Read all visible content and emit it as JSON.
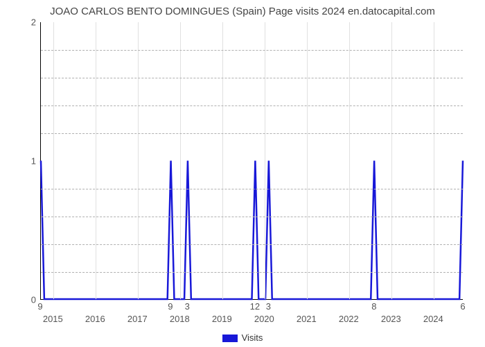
{
  "title": "JOAO CARLOS BENTO DOMINGUES (Spain) Page visits 2024 en.datocapital.com",
  "chart": {
    "type": "line",
    "background_color": "#ffffff",
    "grid_color": "#e0e0e0",
    "dashed_grid_color": "#b0b0b0",
    "axis_color": "#000000",
    "title_fontsize": 15,
    "title_color": "#444444",
    "tick_fontsize": 13,
    "tick_color": "#555555",
    "line_color": "#1818d8",
    "line_width": 2.5,
    "ylim": [
      0,
      2
    ],
    "yticks": [
      0,
      1,
      2
    ],
    "minor_y_count_between": 4,
    "xlim": [
      2014.7,
      2024.7
    ],
    "xticks": [
      2015,
      2016,
      2017,
      2018,
      2019,
      2020,
      2021,
      2022,
      2023,
      2024
    ],
    "series": {
      "name": "Visits",
      "data": [
        {
          "x": 2014.7,
          "y": 1,
          "label": "9"
        },
        {
          "x": 2014.78,
          "y": 0
        },
        {
          "x": 2017.7,
          "y": 0
        },
        {
          "x": 2017.78,
          "y": 1,
          "label": "9"
        },
        {
          "x": 2017.86,
          "y": 0
        },
        {
          "x": 2018.1,
          "y": 0
        },
        {
          "x": 2018.18,
          "y": 1,
          "label": "3"
        },
        {
          "x": 2018.26,
          "y": 0
        },
        {
          "x": 2019.7,
          "y": 0
        },
        {
          "x": 2019.78,
          "y": 1,
          "label": "12"
        },
        {
          "x": 2019.86,
          "y": 0
        },
        {
          "x": 2020.02,
          "y": 0
        },
        {
          "x": 2020.1,
          "y": 1,
          "label": "3"
        },
        {
          "x": 2020.18,
          "y": 0
        },
        {
          "x": 2022.52,
          "y": 0
        },
        {
          "x": 2022.6,
          "y": 1,
          "label": "8"
        },
        {
          "x": 2022.68,
          "y": 0
        },
        {
          "x": 2024.62,
          "y": 0
        },
        {
          "x": 2024.7,
          "y": 1,
          "label": "6"
        }
      ]
    },
    "legend": {
      "label": "Visits",
      "swatch_color": "#1818d8"
    }
  }
}
